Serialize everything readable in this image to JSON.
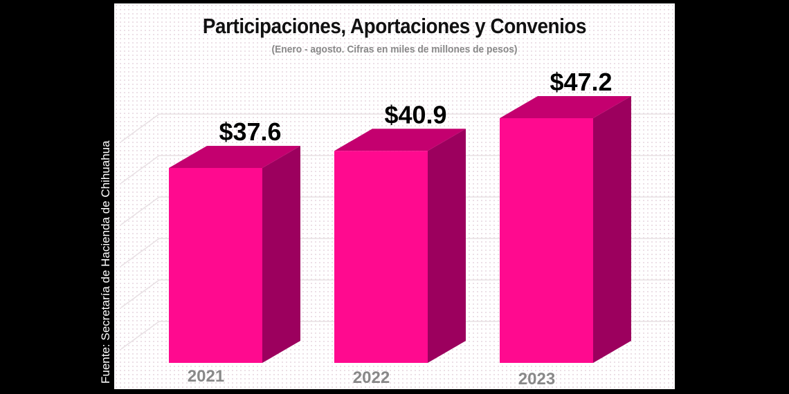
{
  "chart_data": {
    "type": "bar",
    "style": "3d",
    "title": "Participaciones, Aportaciones y Convenios",
    "subtitle": "(Enero - agosto. Cifras en miles de millones de pesos)",
    "categories": [
      "2021",
      "2022",
      "2023"
    ],
    "values": [
      37.6,
      40.9,
      47.2
    ],
    "data_labels": [
      "$37.6",
      "$40.9",
      "$47.2"
    ],
    "xlabel": "",
    "ylabel": "",
    "ylim": [
      0,
      60
    ],
    "grid": true,
    "colors": {
      "front": "#ff0a8f",
      "top": "#c4006f",
      "side": "#9c005e",
      "year_label": "#888888"
    }
  },
  "source": "Fuente: Secretaría de Hacienda de Chihuahua"
}
